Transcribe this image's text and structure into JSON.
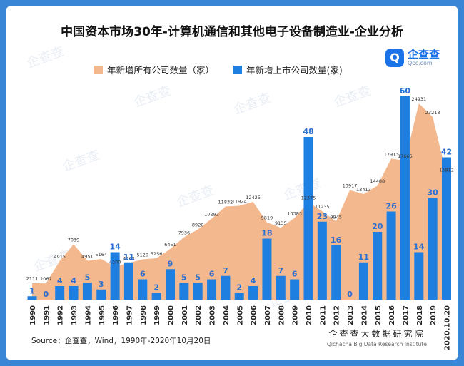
{
  "title": "中国资本市场30年-计算机通信和其他电子设备制造业-企业分析",
  "legend": {
    "area_label": "年新增所有公司数量（家）",
    "bar_label": "年新增上市公司数量(家)"
  },
  "logo": {
    "name": "企查查",
    "sub": "Qcc.com",
    "mark": "Q"
  },
  "source": "Source：企查查，Wind，1990年-2020年10月20日",
  "institute": {
    "cn": "企查查大数据研究院",
    "en": "Qichacha Big Data Research Institute"
  },
  "colors": {
    "area": "#f3b88e",
    "bar": "#1f7fe0",
    "bar_label": "#2c6fd1",
    "frame": "#3a86d6"
  },
  "chart_data": {
    "type": "bar+area",
    "categories": [
      "1990",
      "1991",
      "1992",
      "1993",
      "1994",
      "1995",
      "1996",
      "1997",
      "1998",
      "1999",
      "2000",
      "2001",
      "2002",
      "2003",
      "2004",
      "2005",
      "2006",
      "2007",
      "2008",
      "2009",
      "2010",
      "2011",
      "2012",
      "2013",
      "2014",
      "2015",
      "2016",
      "2017",
      "2018",
      "2019",
      "2020.10.20"
    ],
    "series": [
      {
        "name": "年新增所有公司数量（家）",
        "type": "area",
        "values": [
          2111,
          2067,
          4915,
          7039,
          4951,
          5164,
          4200,
          4663,
          5120,
          5256,
          6451,
          7936,
          8920,
          10292,
          11832,
          11924,
          12425,
          9819,
          9135,
          10383,
          12375,
          11235,
          9945,
          13917,
          13413,
          14488,
          17913,
          17665,
          24931,
          23213,
          15912
        ]
      },
      {
        "name": "年新增上市公司数量(家)",
        "type": "bar",
        "values": [
          1,
          0,
          4,
          4,
          5,
          3,
          14,
          11,
          6,
          2,
          9,
          5,
          5,
          6,
          7,
          2,
          4,
          18,
          7,
          6,
          48,
          23,
          16,
          0,
          11,
          20,
          26,
          60,
          14,
          30,
          42
        ]
      }
    ],
    "bar_ylim": [
      0,
      60
    ],
    "area_ylim": [
      0,
      24931
    ]
  }
}
